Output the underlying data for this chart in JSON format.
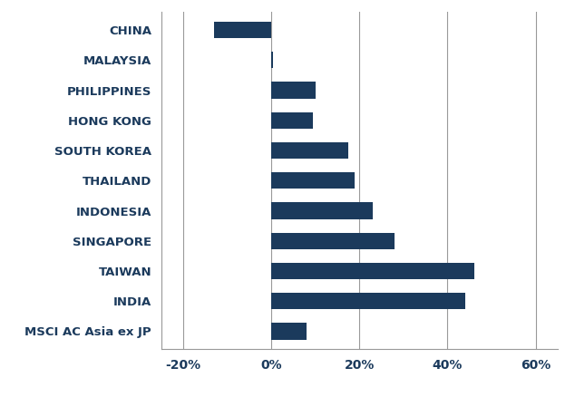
{
  "categories": [
    "CHINA",
    "MALAYSIA",
    "PHILIPPINES",
    "HONG KONG",
    "SOUTH KOREA",
    "THAILAND",
    "INDONESIA",
    "SINGAPORE",
    "TAIWAN",
    "INDIA",
    "MSCI AC Asia ex JP"
  ],
  "values": [
    -13.0,
    0.5,
    10.0,
    9.5,
    17.5,
    19.0,
    23.0,
    28.0,
    46.0,
    44.0,
    8.0
  ],
  "bar_color": "#1b3a5c",
  "xlim": [
    -25,
    65
  ],
  "xticks": [
    -20,
    0,
    20,
    40,
    60
  ],
  "xtick_labels": [
    "-20%",
    "0%",
    "20%",
    "40%",
    "60%"
  ],
  "label_fontsize": 9.5,
  "tick_fontsize": 10,
  "bar_height": 0.55,
  "background_color": "#ffffff",
  "grid_color": "#999999",
  "text_color": "#1b3a5c",
  "spine_color": "#999999"
}
